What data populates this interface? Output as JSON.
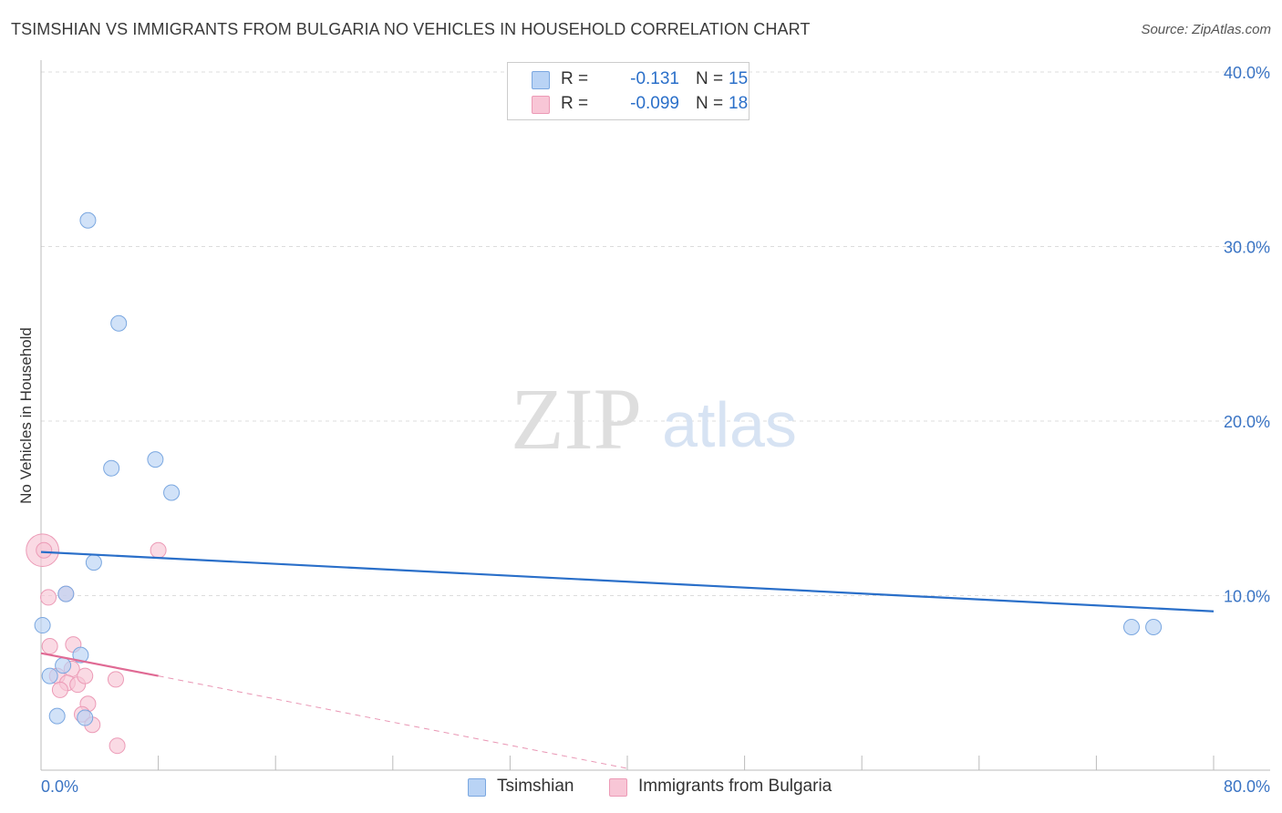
{
  "header": {
    "title": "TSIMSHIAN VS IMMIGRANTS FROM BULGARIA NO VEHICLES IN HOUSEHOLD CORRELATION CHART",
    "source": "Source: ZipAtlas.com"
  },
  "watermark": {
    "zip": "ZIP",
    "atlas": "atlas"
  },
  "legend": {
    "rows": [
      {
        "r_label": "R =",
        "r_value": "-0.131",
        "n_label": "N =",
        "n_value": "15"
      },
      {
        "r_label": "R =",
        "r_value": "-0.099",
        "n_label": "N =",
        "n_value": "18"
      }
    ],
    "bottom": [
      {
        "label": "Tsimshian"
      },
      {
        "label": "Immigrants from Bulgaria"
      }
    ]
  },
  "colors": {
    "blue_fill": "#b9d3f5",
    "blue_stroke": "#7aa7e0",
    "blue_line": "#2a6fc9",
    "pink_fill": "#f8c6d6",
    "pink_stroke": "#ec9ab6",
    "pink_line": "#e06a94",
    "axis_text": "#3a74c4"
  },
  "chart_data": {
    "type": "scatter",
    "title": "TSIMSHIAN VS IMMIGRANTS FROM BULGARIA NO VEHICLES IN HOUSEHOLD CORRELATION CHART",
    "xlabel": "",
    "ylabel": "No Vehicles in Household",
    "xlim": [
      0,
      80
    ],
    "ylim": [
      0,
      40
    ],
    "x_tick_labels": [
      "0.0%",
      "80.0%"
    ],
    "y_ticks": [
      10,
      20,
      30,
      40
    ],
    "y_tick_labels": [
      "10.0%",
      "20.0%",
      "30.0%",
      "40.0%"
    ],
    "grid": true,
    "legend_position": "top-center",
    "series": [
      {
        "name": "Tsimshian",
        "color": "#b9d3f5",
        "points": [
          {
            "x": 3.2,
            "y": 31.5,
            "s": 1
          },
          {
            "x": 5.3,
            "y": 25.6,
            "s": 1
          },
          {
            "x": 4.8,
            "y": 17.3,
            "s": 1
          },
          {
            "x": 7.8,
            "y": 17.8,
            "s": 1
          },
          {
            "x": 8.9,
            "y": 15.9,
            "s": 1
          },
          {
            "x": 3.6,
            "y": 11.9,
            "s": 1
          },
          {
            "x": 1.7,
            "y": 10.1,
            "s": 1
          },
          {
            "x": 0.1,
            "y": 8.3,
            "s": 1
          },
          {
            "x": 2.7,
            "y": 6.6,
            "s": 1
          },
          {
            "x": 1.5,
            "y": 6.0,
            "s": 1
          },
          {
            "x": 0.6,
            "y": 5.4,
            "s": 1
          },
          {
            "x": 1.1,
            "y": 3.1,
            "s": 1
          },
          {
            "x": 3.0,
            "y": 3.0,
            "s": 1
          },
          {
            "x": 74.4,
            "y": 8.2,
            "s": 1
          },
          {
            "x": 75.9,
            "y": 8.2,
            "s": 1
          }
        ],
        "trend": {
          "x": [
            0,
            80
          ],
          "y": [
            12.5,
            9.1
          ]
        }
      },
      {
        "name": "Immigrants from Bulgaria",
        "color": "#f8c6d6",
        "points": [
          {
            "x": 0.1,
            "y": 12.6,
            "s": 2.1
          },
          {
            "x": 8.0,
            "y": 12.6,
            "s": 1
          },
          {
            "x": 1.7,
            "y": 10.1,
            "s": 1
          },
          {
            "x": 0.5,
            "y": 9.9,
            "s": 1
          },
          {
            "x": 0.6,
            "y": 7.1,
            "s": 1
          },
          {
            "x": 2.2,
            "y": 7.2,
            "s": 1
          },
          {
            "x": 2.1,
            "y": 5.8,
            "s": 1
          },
          {
            "x": 1.1,
            "y": 5.4,
            "s": 1
          },
          {
            "x": 1.8,
            "y": 5.0,
            "s": 1
          },
          {
            "x": 2.5,
            "y": 4.9,
            "s": 1
          },
          {
            "x": 1.3,
            "y": 4.6,
            "s": 1
          },
          {
            "x": 3.0,
            "y": 5.4,
            "s": 1
          },
          {
            "x": 5.1,
            "y": 5.2,
            "s": 1
          },
          {
            "x": 3.2,
            "y": 3.8,
            "s": 1
          },
          {
            "x": 2.8,
            "y": 3.2,
            "s": 1
          },
          {
            "x": 3.5,
            "y": 2.6,
            "s": 1
          },
          {
            "x": 5.2,
            "y": 1.4,
            "s": 1
          },
          {
            "x": 0.2,
            "y": 12.6,
            "s": 1
          }
        ],
        "trend": {
          "x": [
            0,
            8
          ],
          "y": [
            6.7,
            5.4
          ]
        },
        "trend_dashed": {
          "x": [
            8,
            40
          ],
          "y": [
            5.4,
            0.1
          ]
        }
      }
    ]
  }
}
